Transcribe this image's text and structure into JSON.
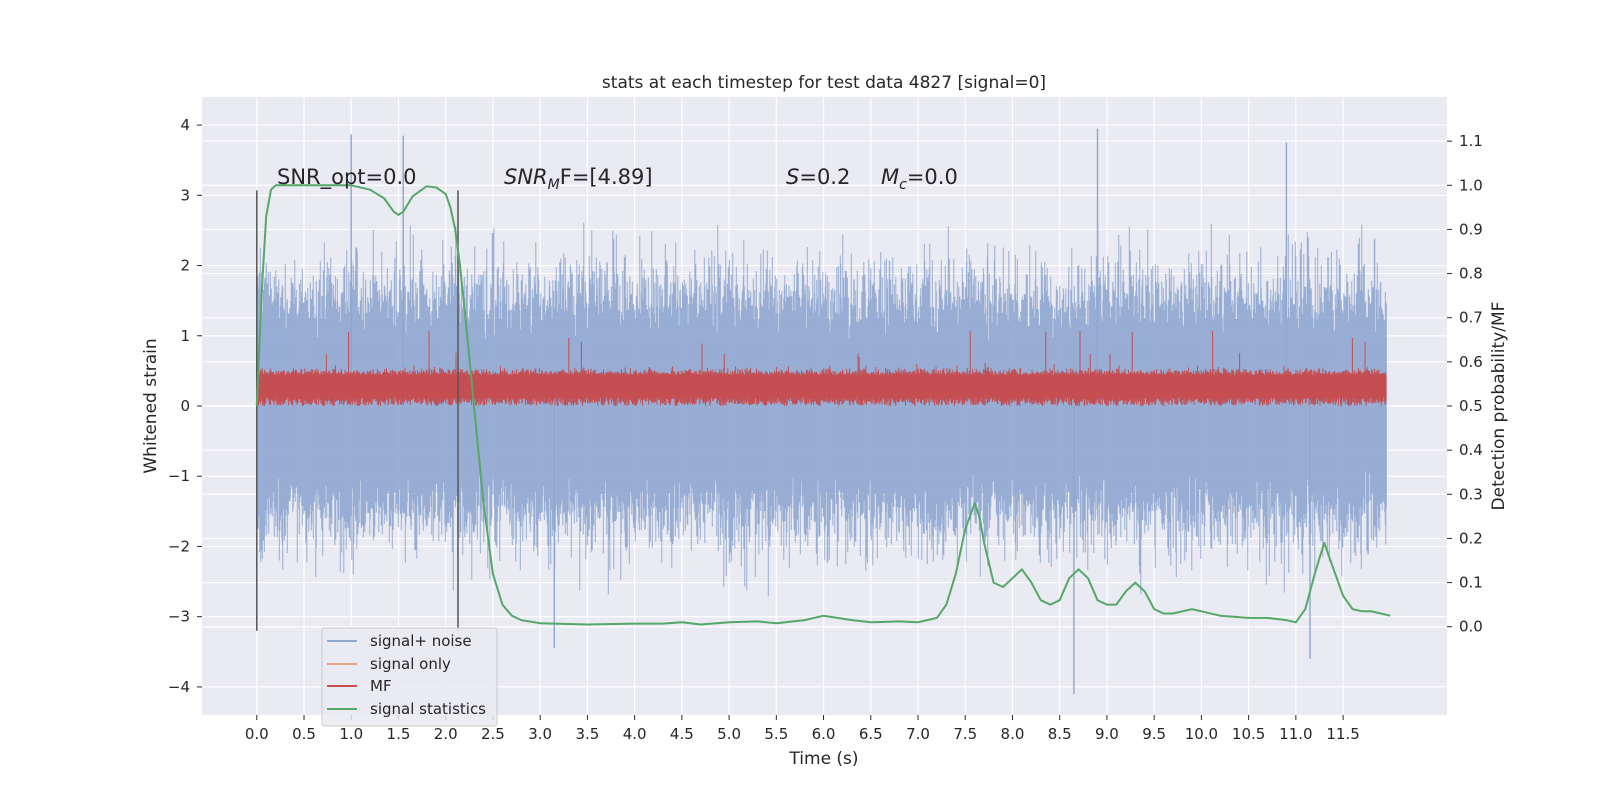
{
  "chart_data": {
    "type": "line",
    "title": "stats at each timestep for test data 4827 [signal=0]",
    "xlabel": "Time (s)",
    "ylabel": "Whitened strain",
    "ylabel_right": "Detection probability/MF",
    "xlim": [
      -0.58,
      12.6
    ],
    "ylim": [
      -4.4,
      4.4
    ],
    "ylim_right": [
      -0.2,
      1.2
    ],
    "xticks": [
      "0.0",
      "0.5",
      "1.0",
      "1.5",
      "2.0",
      "2.5",
      "3.0",
      "3.5",
      "4.0",
      "4.5",
      "5.0",
      "5.5",
      "6.0",
      "6.5",
      "7.0",
      "7.5",
      "8.0",
      "8.5",
      "9.0",
      "9.5",
      "10.0",
      "10.5",
      "11.0",
      "11.5"
    ],
    "yticks_left": [
      "−4",
      "−3",
      "−2",
      "−1",
      "0",
      "1",
      "2",
      "3",
      "4"
    ],
    "yticks_right": [
      "0.0",
      "0.1",
      "0.2",
      "0.3",
      "0.4",
      "0.5",
      "0.6",
      "0.7",
      "0.8",
      "0.9",
      "1.0",
      "1.1"
    ],
    "grid": true,
    "legend_position": "lower-left",
    "annotations": {
      "snr_opt": "SNR_opt=0.0",
      "snr_mf_prefix": "SNR",
      "snr_mf_sub": "M",
      "snr_mf_suffix": "F=[4.89]",
      "s_symbol": "S",
      "s_value": "=0.2",
      "mc_symbol": "M",
      "mc_sub": "c",
      "mc_value": "=0.0"
    },
    "vlines": [
      0.0,
      2.13
    ],
    "series": [
      {
        "name": "signal+ noise",
        "color": "#8fa6cf",
        "axis": "left",
        "kind": "noise",
        "x_range": [
          0.0,
          11.96
        ],
        "amplitude": 1.0,
        "note_peaks": [
          3.87,
          3.85,
          3.95,
          3.75,
          -3.45,
          -4.1,
          -3.6
        ]
      },
      {
        "name": "signal only",
        "color": "#e8a48a",
        "axis": "left",
        "kind": "flat",
        "values_constant": 0.0
      },
      {
        "name": "MF",
        "color": "#c44e52",
        "axis": "right",
        "kind": "band",
        "x_range": [
          0.0,
          11.96
        ],
        "band_low": 0.5,
        "band_high": 0.57,
        "max_spike": 0.67
      },
      {
        "name": "signal statistics",
        "color": "#55a868",
        "axis": "right",
        "x": [
          0.0,
          0.05,
          0.1,
          0.15,
          0.2,
          0.3,
          0.5,
          0.8,
          1.0,
          1.2,
          1.35,
          1.45,
          1.5,
          1.55,
          1.65,
          1.8,
          1.9,
          2.0,
          2.05,
          2.1,
          2.15,
          2.2,
          2.3,
          2.4,
          2.5,
          2.6,
          2.7,
          2.8,
          3.0,
          3.5,
          4.0,
          4.3,
          4.5,
          4.7,
          5.0,
          5.3,
          5.5,
          5.8,
          6.0,
          6.3,
          6.5,
          6.8,
          7.0,
          7.2,
          7.3,
          7.4,
          7.5,
          7.6,
          7.65,
          7.7,
          7.8,
          7.9,
          8.0,
          8.1,
          8.2,
          8.3,
          8.4,
          8.5,
          8.6,
          8.7,
          8.8,
          8.9,
          9.0,
          9.1,
          9.2,
          9.3,
          9.4,
          9.5,
          9.6,
          9.7,
          9.8,
          9.9,
          10.0,
          10.2,
          10.5,
          10.7,
          10.9,
          11.0,
          11.1,
          11.2,
          11.3,
          11.4,
          11.5,
          11.6,
          11.7,
          11.8,
          11.9,
          12.0
        ],
        "values": [
          0.5,
          0.75,
          0.93,
          0.99,
          1.0,
          1.0,
          1.0,
          1.0,
          1.0,
          0.99,
          0.97,
          0.94,
          0.933,
          0.94,
          0.975,
          0.998,
          0.995,
          0.98,
          0.95,
          0.9,
          0.82,
          0.72,
          0.5,
          0.28,
          0.12,
          0.05,
          0.025,
          0.015,
          0.008,
          0.005,
          0.007,
          0.007,
          0.01,
          0.005,
          0.01,
          0.012,
          0.008,
          0.015,
          0.025,
          0.015,
          0.01,
          0.012,
          0.01,
          0.02,
          0.05,
          0.12,
          0.22,
          0.28,
          0.25,
          0.19,
          0.1,
          0.09,
          0.11,
          0.13,
          0.1,
          0.06,
          0.05,
          0.06,
          0.11,
          0.13,
          0.11,
          0.06,
          0.05,
          0.05,
          0.08,
          0.1,
          0.08,
          0.04,
          0.03,
          0.03,
          0.035,
          0.04,
          0.035,
          0.025,
          0.02,
          0.02,
          0.015,
          0.01,
          0.04,
          0.12,
          0.19,
          0.13,
          0.07,
          0.04,
          0.035,
          0.035,
          0.03,
          0.025
        ]
      }
    ]
  }
}
